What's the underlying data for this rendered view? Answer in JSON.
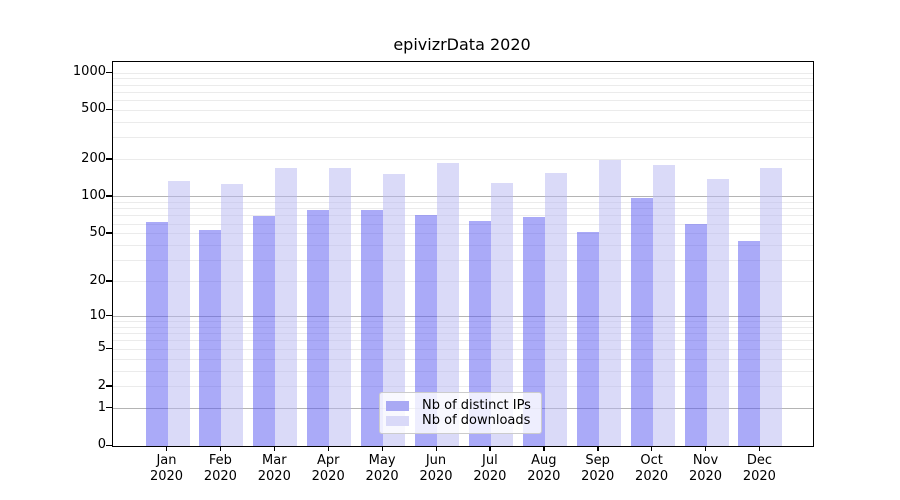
{
  "title": "epivizrData 2020",
  "legend": {
    "items": [
      {
        "label": "Nb of distinct IPs",
        "color": "#a9a9f4"
      },
      {
        "label": "Nb of downloads",
        "color": "#d9d9f8"
      }
    ]
  },
  "chart_data": {
    "type": "bar",
    "title": "epivizrData 2020",
    "scale": "log10(1+x)",
    "categories": [
      "Jan 2020",
      "Feb 2020",
      "Mar 2020",
      "Apr 2020",
      "May 2020",
      "Jun 2020",
      "Jul 2020",
      "Aug 2020",
      "Sep 2020",
      "Oct 2020",
      "Nov 2020",
      "Dec 2020"
    ],
    "series": [
      {
        "name": "Nb of distinct IPs",
        "color": "rgba(85,85,242,0.5)",
        "values": [
          63,
          54,
          70,
          78,
          78,
          71,
          64,
          68,
          52,
          98,
          60,
          44
        ]
      },
      {
        "name": "Nb of downloads",
        "color": "rgba(181,181,241,0.5)",
        "values": [
          135,
          128,
          170,
          172,
          153,
          189,
          130,
          155,
          200,
          182,
          139,
          172
        ]
      }
    ],
    "yticks": [
      0,
      1,
      2,
      5,
      10,
      20,
      50,
      100,
      200,
      500,
      1000
    ],
    "grid_major": [
      1,
      10,
      100
    ],
    "grid_minor": [
      2,
      3,
      4,
      5,
      6,
      7,
      8,
      9,
      20,
      30,
      40,
      50,
      60,
      70,
      80,
      90,
      200,
      300,
      400,
      500,
      600,
      700,
      800,
      900,
      1000
    ],
    "ylim": [
      0,
      1228
    ],
    "xlabel": "",
    "ylabel": "",
    "grid": true,
    "legend_position": "lower center"
  }
}
